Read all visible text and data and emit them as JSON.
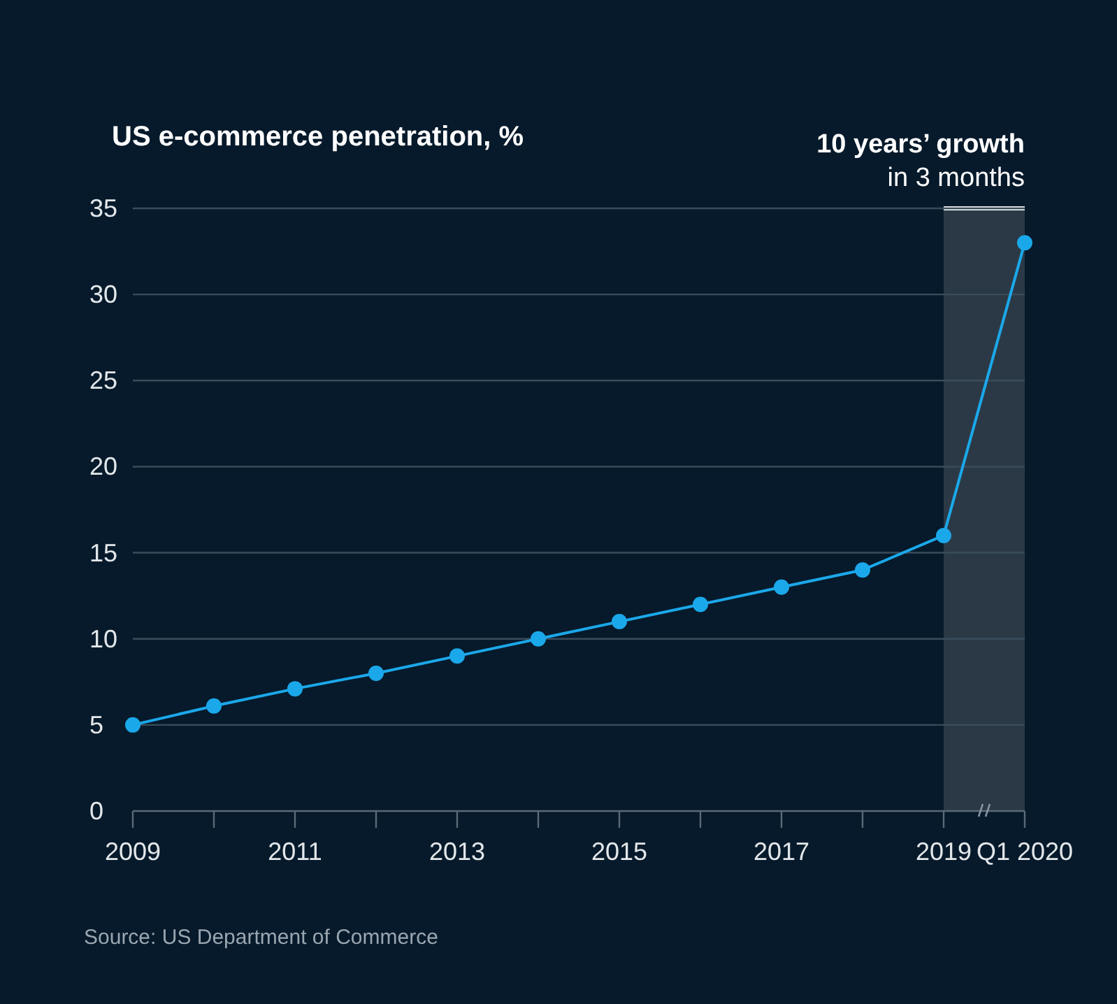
{
  "chart_data": {
    "type": "line",
    "title": "US e-commerce penetration, %",
    "categories": [
      "2009",
      null,
      "2011",
      null,
      "2013",
      null,
      "2015",
      null,
      "2017",
      null,
      "2019",
      "Q1 2020"
    ],
    "series": [
      {
        "color": "#1ba8ea",
        "values": [
          5.0,
          6.1,
          7.1,
          8.0,
          9.0,
          10.0,
          11.0,
          12.0,
          13.0,
          14.0,
          16.0,
          33.0
        ]
      }
    ],
    "ylim": [
      0,
      35
    ],
    "yticks": [
      0,
      5,
      10,
      15,
      20,
      25,
      30,
      35
    ],
    "grid": "y",
    "marker": "circle",
    "line_style": "solid",
    "bands": [
      {
        "axis": "x",
        "from": "2019",
        "to": "Q1 2020",
        "label": "10 years’ growth\nin 3 months",
        "color": "#2b3946"
      }
    ],
    "annotations": [
      "Source: US Department of Commerce"
    ]
  }
}
